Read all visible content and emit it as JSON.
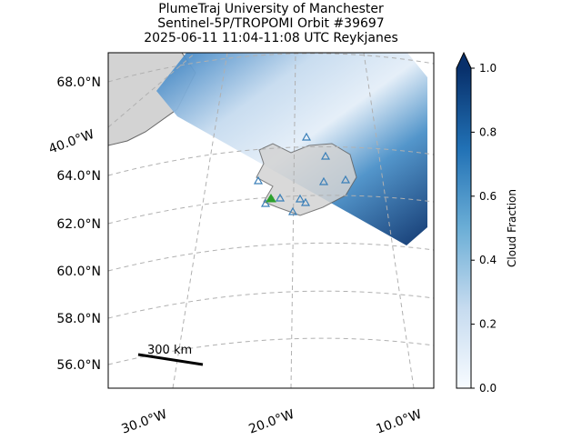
{
  "title": [
    "PlumeTraj    University of Manchester",
    "Sentinel-5P/TROPOMI Orbit #39697",
    "2025-06-11   11:04-11:08 UTC   Reykjanes"
  ],
  "map": {
    "lat_labels": [
      "68.0°N",
      "64.0°N",
      "62.0°N",
      "60.0°N",
      "58.0°N",
      "56.0°N"
    ],
    "lon_labels": [
      "40.0°W",
      "30.0°W",
      "20.0°W",
      "10.0°W"
    ],
    "scale_bar": "300 km"
  },
  "colorbar": {
    "label": "Cloud Fraction",
    "lim": [
      0,
      1
    ],
    "ticks": [
      {
        "value": 0,
        "label": "0.0"
      },
      {
        "value": 0.2,
        "label": "0.2"
      },
      {
        "value": 0.4,
        "label": "0.4"
      },
      {
        "value": 0.6,
        "label": "0.6"
      },
      {
        "value": 0.8,
        "label": "0.8"
      },
      {
        "value": 1,
        "label": "1.0"
      }
    ]
  }
}
